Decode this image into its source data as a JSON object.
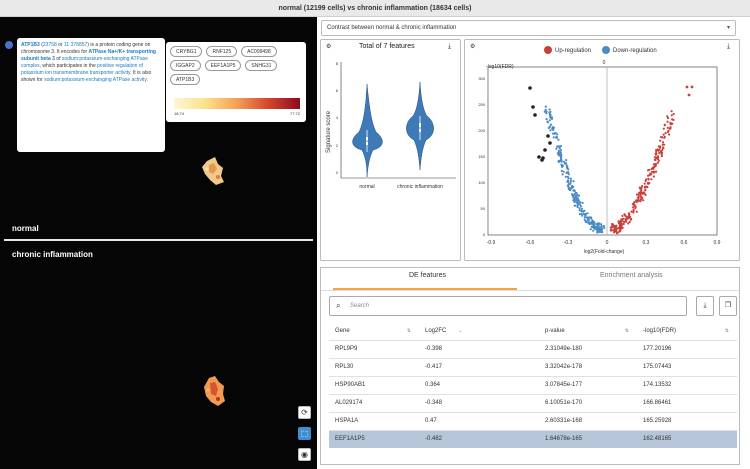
{
  "header": {
    "title": "normal (12199 cells) vs chronic inflammation (18634 cells)"
  },
  "left_panel": {
    "normal_label": "normal",
    "chronic_label": "chronic inflammation",
    "info": {
      "gene": "ATP1B3",
      "id1": "23758",
      "sep1": "or",
      "id2": "11 378857",
      "t1": "is a protein coding gene on chromosome 3. It encodes for",
      "protein": "ATPase Na+/K+ transporting subunit beta 3",
      "t2": "of",
      "complex": "sodium:potassium-exchanging ATPase complex",
      "t3": ", which participates in the",
      "process": "positive regulation of potassium ion transmembrane transporter activity",
      "t4": ". It is also shown for",
      "activity": "sodium:potassium-exchanging ATPase activity",
      "t5": "."
    },
    "genes": [
      "CRYBG1",
      "RNF125",
      "AC099498",
      "IGGAP2",
      "EEF1A1P5",
      "SNHG31",
      "ATP1B3"
    ],
    "colorbar": {
      "min": "18.74",
      "max": "77.72"
    },
    "tools": {
      "reset": "⟳",
      "select": "⬚",
      "camera": "◉"
    }
  },
  "contrast_dropdown": {
    "value": "Contrast between normal & chronic inflammation"
  },
  "violin": {
    "title": "Total of 7 features",
    "ylabel": "Signature score",
    "categories": [
      "normal",
      "chronic inflammation"
    ],
    "y_ticks": [
      "0",
      "2",
      "4",
      "6",
      "8"
    ],
    "color": "#3f7ab8"
  },
  "volcano": {
    "legend_up": "Up-regulation",
    "legend_down": "Down-regulation",
    "ylabel": "-log10(FDR)",
    "xlabel": "log2(Fold-change)",
    "zero_label": "0",
    "x_ticks": [
      "-0.9",
      "-0.6",
      "-0.3",
      "0",
      "0.3",
      "0.6",
      "0.9"
    ],
    "y_ticks": [
      "0",
      "50",
      "100",
      "150",
      "200",
      "250",
      "300"
    ],
    "up_color": "#c9403a",
    "down_color": "#4b8ac4"
  },
  "de_panel": {
    "tabs": [
      "DE features",
      "Enrichment analysis"
    ],
    "search_placeholder": "Search",
    "columns": [
      "Gene",
      "Log2FC",
      "p-value",
      "-log10(FDR)"
    ],
    "rows": [
      {
        "gene": "RPL9P9",
        "log2fc": "-0.398",
        "pvalue": "2.31049e-180",
        "fdr": "177.20196"
      },
      {
        "gene": "RPL30",
        "log2fc": "-0.417",
        "pvalue": "3.32042e-178",
        "fdr": "175.07443"
      },
      {
        "gene": "HSP90AB1",
        "log2fc": "0.364",
        "pvalue": "3.07845e-177",
        "fdr": "174.13532"
      },
      {
        "gene": "AL029174",
        "log2fc": "-0.348",
        "pvalue": "6.10051e-170",
        "fdr": "166.86461"
      },
      {
        "gene": "HSPA1A",
        "log2fc": "0.47",
        "pvalue": "2.60331e-168",
        "fdr": "165.25928"
      },
      {
        "gene": "EEF1A1P5",
        "log2fc": "-0.482",
        "pvalue": "1.64678e-165",
        "fdr": "162.48165"
      }
    ]
  }
}
